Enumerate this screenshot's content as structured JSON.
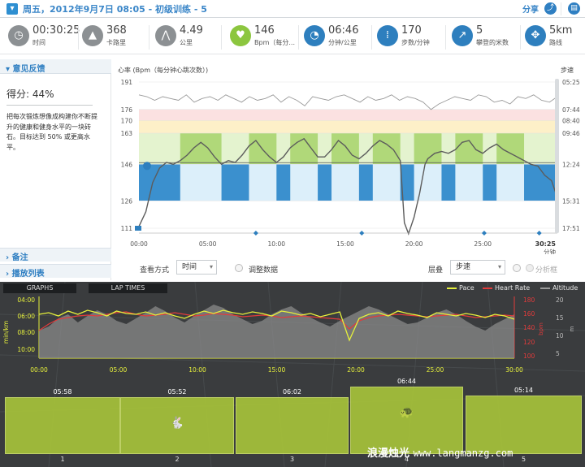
{
  "header": {
    "title": "周五，2012年9月7日 08:05 - 初级训练  - 5",
    "share": "分享"
  },
  "stats": [
    {
      "id": "time",
      "icon": "clock-icon",
      "value": "00:30:25",
      "label": "时间"
    },
    {
      "id": "calories",
      "icon": "flame-icon",
      "value": "368",
      "label": "卡路里"
    },
    {
      "id": "distance",
      "icon": "road-icon",
      "value": "4.49",
      "label": "公里"
    },
    {
      "id": "heart",
      "icon": "heart-icon",
      "value": "146",
      "label": "Bpm（每分..."
    },
    {
      "id": "pace",
      "icon": "speedometer-icon",
      "value": "06:46",
      "label": "分钟/公里"
    },
    {
      "id": "cadence",
      "icon": "footsteps-icon",
      "value": "170",
      "label": "步数/分钟"
    },
    {
      "id": "climb",
      "icon": "climb-arrow-icon",
      "value": "5",
      "label": "攀登的米数"
    },
    {
      "id": "route",
      "icon": "route-icon",
      "value": "5km",
      "label": "路线"
    }
  ],
  "feedback": {
    "heading": "意见反馈",
    "score": "得分: 44%",
    "advice": "把每次锻炼想像成构建你不断提升的健康和健身水平的一块砖石。目标达到 50% 或更高水平。",
    "notes": "备注",
    "playlist": "播放列表"
  },
  "hr_chart": {
    "title": "心率 (Bpm（每分钟心跳次数）)",
    "pace_title": "步速",
    "y_left": [
      "191",
      "176",
      "170",
      "163",
      "146",
      "126",
      "111"
    ],
    "y_right": [
      "05:25",
      "07:44",
      "08:40",
      "09:46",
      "12:24",
      "15:31",
      "17:51"
    ],
    "x_ticks": [
      "00:00",
      "05:00",
      "10:00",
      "15:00",
      "20:00",
      "25:00"
    ],
    "end_time": "30:25",
    "end_unit": "分钟"
  },
  "controls": {
    "view_label": "查看方式",
    "view_value": "时间",
    "adjust": "调整数据",
    "layer_label": "层叠",
    "layer_value": "步速",
    "analysis": "分析框"
  },
  "bottom": {
    "tab_graphs": "GRAPHS",
    "tab_laps": "LAP TIMES",
    "legend": {
      "pace": "Pace",
      "hr": "Heart Rate",
      "alt": "Altitude"
    },
    "y_pace": [
      "04:00",
      "06:00",
      "08:00",
      "10:00"
    ],
    "y_pace_unit": "min/km",
    "y_hr": [
      "180",
      "160",
      "140",
      "120",
      "100"
    ],
    "y_hr_unit": "bpm",
    "y_alt": [
      "20",
      "15",
      "10",
      "5"
    ],
    "y_alt_unit": "m",
    "x_ticks": [
      "00:00",
      "05:00",
      "10:00",
      "15:00",
      "20:00",
      "25:00",
      "30:00"
    ],
    "laps": [
      {
        "time": "05:58",
        "n": "1"
      },
      {
        "time": "05:52",
        "n": "2"
      },
      {
        "time": "06:02",
        "n": "3"
      },
      {
        "time": "06:44",
        "n": "4"
      },
      {
        "time": "05:14",
        "n": "5"
      }
    ],
    "watermark_cn": "浪漫烛光",
    "watermark_url": "www.langmanzg.com"
  },
  "colors": {
    "accent": "#2e7fbe",
    "green": "#8cc63f",
    "pace_yellow": "#e6f03c",
    "hr_red": "#e23b3b"
  }
}
